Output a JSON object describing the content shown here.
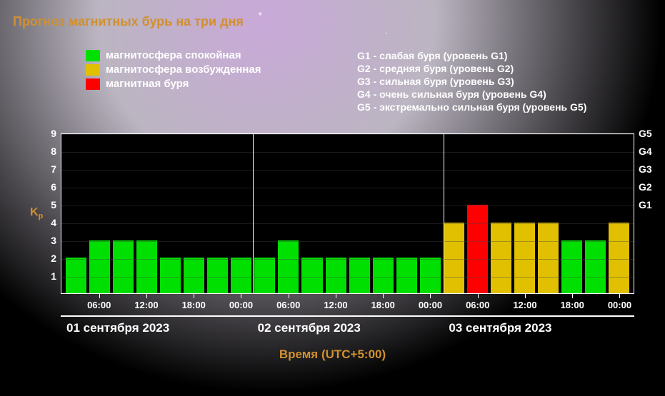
{
  "title": "Прогноз магнитных бурь на три дня",
  "legend": {
    "items": [
      {
        "label": "магнитосфера спокойная",
        "color": "#00e000"
      },
      {
        "label": "магнитосфера возбужденная",
        "color": "#e0c000"
      },
      {
        "label": "магнитная буря",
        "color": "#ff0000"
      }
    ],
    "scale": [
      "G1 - слабая буря (уровень G1)",
      "G2 - средняя буря (уровень G2)",
      "G3 - сильная буря (уровень G3)",
      "G4 - очень сильная буря (уровень G4)",
      "G5 - экстремально сильная буря (уровень G5)"
    ]
  },
  "chart": {
    "type": "bar",
    "y_axis_left": {
      "label": "Kp",
      "ticks": [
        1,
        2,
        3,
        4,
        5,
        6,
        7,
        8,
        9
      ],
      "ylim": [
        0,
        9
      ],
      "tick_color": "#ffffff",
      "label_color": "#d09030"
    },
    "y_axis_right": {
      "ticks": [
        "G1",
        "G2",
        "G3",
        "G4",
        "G5"
      ],
      "tick_values": [
        5,
        6,
        7,
        8,
        9
      ]
    },
    "x_axis": {
      "ticks_time": [
        "06:00",
        "12:00",
        "18:00",
        "00:00",
        "06:00",
        "12:00",
        "18:00",
        "00:00",
        "06:00",
        "12:00",
        "18:00",
        "00:00"
      ],
      "days": [
        "01 сентября 2023",
        "02 сентября 2023",
        "03 сентября 2023"
      ],
      "title": "Время (UTC+5:00)"
    },
    "colors": {
      "calm": "#00e000",
      "excited": "#e0c000",
      "storm": "#ff0000",
      "background": "#000000",
      "grid": "#444444",
      "border": "#ffffff",
      "text": "#ffffff"
    },
    "bar_gap_ratio": 0.18,
    "bars": [
      {
        "value": 2,
        "state": "calm"
      },
      {
        "value": 3,
        "state": "calm"
      },
      {
        "value": 3,
        "state": "calm"
      },
      {
        "value": 3,
        "state": "calm"
      },
      {
        "value": 2,
        "state": "calm"
      },
      {
        "value": 2,
        "state": "calm"
      },
      {
        "value": 2,
        "state": "calm"
      },
      {
        "value": 2,
        "state": "calm"
      },
      {
        "value": 2,
        "state": "calm"
      },
      {
        "value": 3,
        "state": "calm"
      },
      {
        "value": 2,
        "state": "calm"
      },
      {
        "value": 2,
        "state": "calm"
      },
      {
        "value": 2,
        "state": "calm"
      },
      {
        "value": 2,
        "state": "calm"
      },
      {
        "value": 2,
        "state": "calm"
      },
      {
        "value": 2,
        "state": "calm"
      },
      {
        "value": 4,
        "state": "excited"
      },
      {
        "value": 5,
        "state": "storm"
      },
      {
        "value": 4,
        "state": "excited"
      },
      {
        "value": 4,
        "state": "excited"
      },
      {
        "value": 4,
        "state": "excited"
      },
      {
        "value": 3,
        "state": "calm"
      },
      {
        "value": 3,
        "state": "calm"
      },
      {
        "value": 4,
        "state": "excited"
      }
    ]
  }
}
